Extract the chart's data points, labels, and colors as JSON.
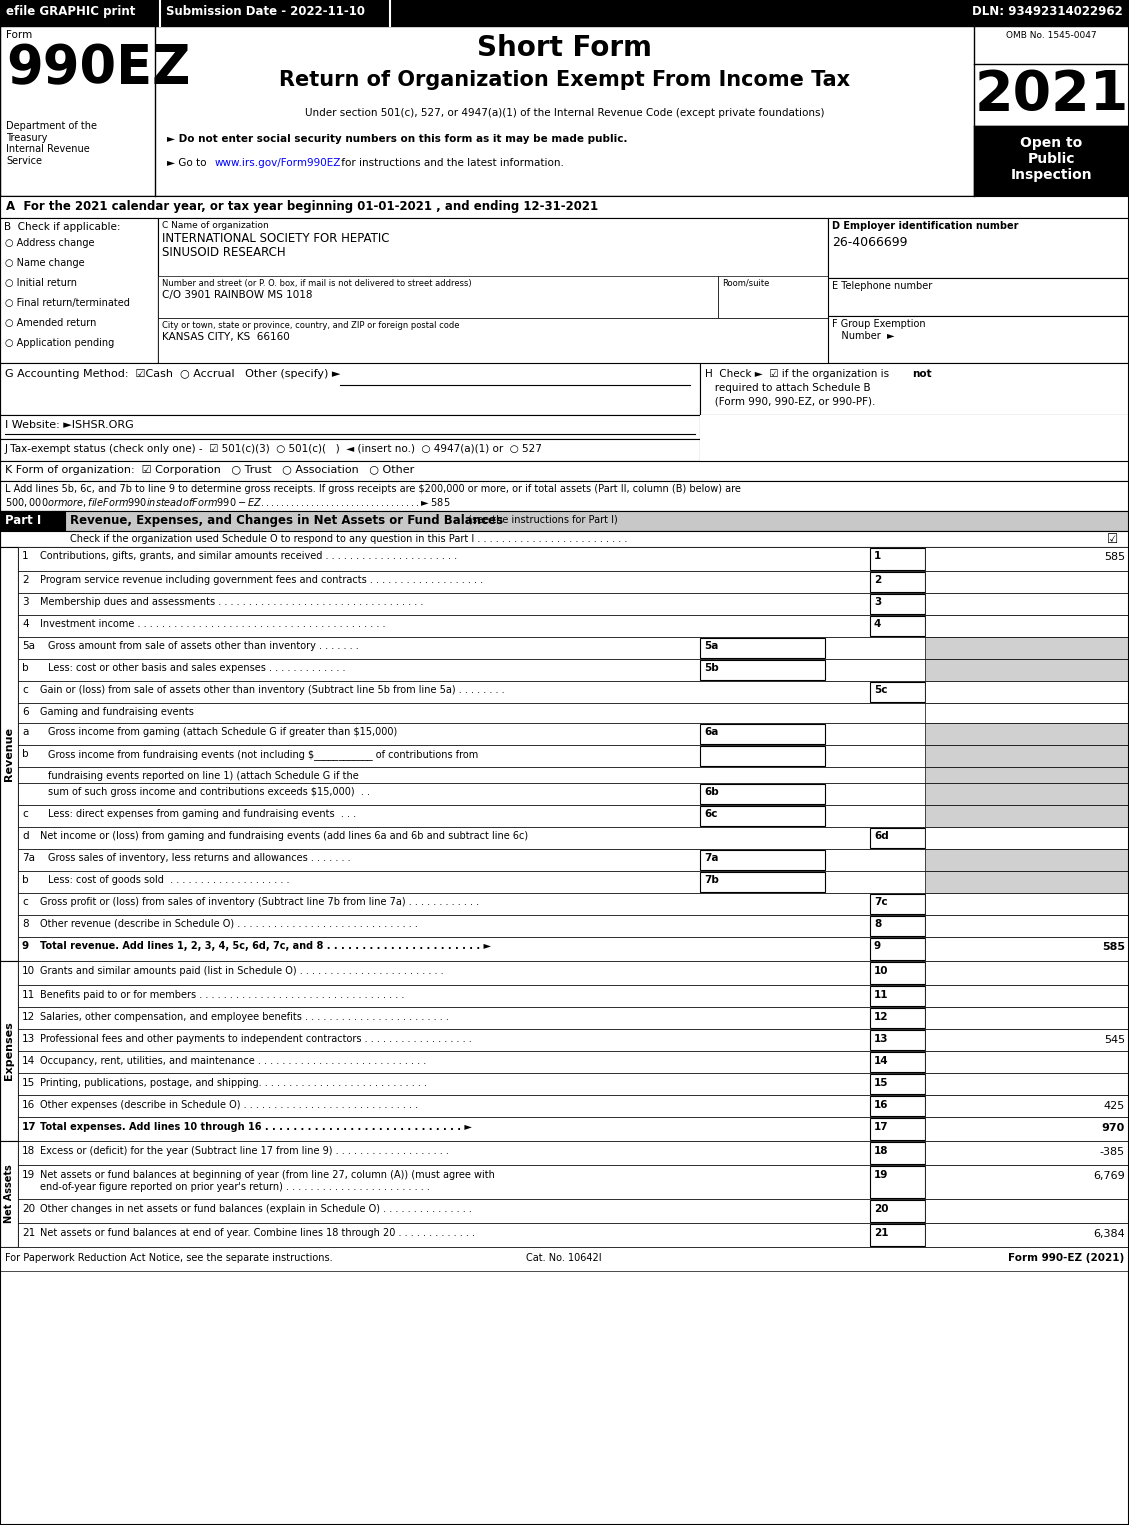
{
  "page_bg": "#ffffff",
  "form_number": "990EZ",
  "form_label": "Form",
  "short_form_title": "Short Form",
  "main_title": "Return of Organization Exempt From Income Tax",
  "subtitle": "Under section 501(c), 527, or 4947(a)(1) of the Internal Revenue Code (except private foundations)",
  "bullet1": "► Do not enter social security numbers on this form as it may be made public.",
  "bullet2_pre": "► Go to ",
  "bullet2_url": "www.irs.gov/Form990EZ",
  "bullet2_post": " for instructions and the latest information.",
  "year": "2021",
  "open_to_public": "Open to\nPublic\nInspection",
  "omb": "OMB No. 1545-0047",
  "dept_text": "Department of the\nTreasury\nInternal Revenue\nService",
  "section_a": "A  For the 2021 calendar year, or tax year beginning 01-01-2021 , and ending 12-31-2021",
  "checkboxes_b": [
    "Address change",
    "Name change",
    "Initial return",
    "Final return/terminated",
    "Amended return",
    "Application pending"
  ],
  "org_name_line1": "INTERNATIONAL SOCIETY FOR HEPATIC",
  "org_name_line2": "SINUSOID RESEARCH",
  "street_value": "C/O 3901 RAINBOW MS 1018",
  "city_value": "KANSAS CITY, KS  66160",
  "ein": "26-4066699",
  "footer_left": "For Paperwork Reduction Act Notice, see the separate instructions.",
  "footer_cat": "Cat. No. 10642I",
  "footer_right": "Form 990-EZ (2021)",
  "gray_color": "#d0d0d0",
  "black": "#000000",
  "white": "#ffffff"
}
